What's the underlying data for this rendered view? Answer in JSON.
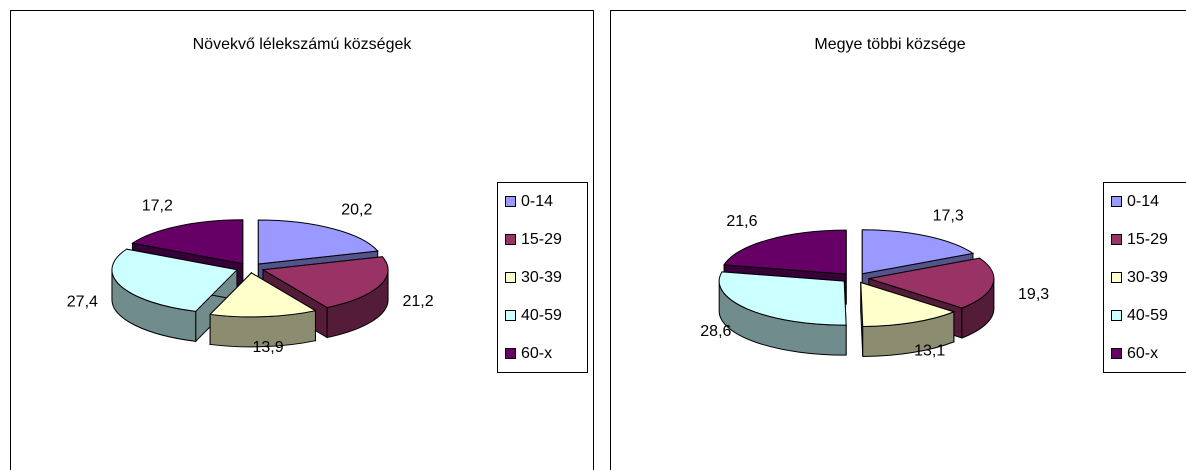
{
  "chart_data": [
    {
      "type": "pie",
      "title": "Növekvő lélekszámú községek",
      "categories": [
        "0-14",
        "15-29",
        "30-39",
        "40-59",
        "60-x"
      ],
      "values": [
        20.2,
        21.2,
        13.9,
        27.4,
        17.2
      ],
      "value_labels": [
        "20,2",
        "21,2",
        "13,9",
        "27,4",
        "17,2"
      ],
      "colors": [
        "#9999ff",
        "#993366",
        "#ffffcc",
        "#ccffff",
        "#660066"
      ]
    },
    {
      "type": "pie",
      "title": "Megye többi községe",
      "categories": [
        "0-14",
        "15-29",
        "30-39",
        "40-59",
        "60-x"
      ],
      "values": [
        17.3,
        19.3,
        13.1,
        28.6,
        21.6
      ],
      "value_labels": [
        "17,3",
        "19,3",
        "13,1",
        "28,6",
        "21,6"
      ],
      "colors": [
        "#9999ff",
        "#993366",
        "#ffffcc",
        "#ccffff",
        "#660066"
      ]
    }
  ]
}
